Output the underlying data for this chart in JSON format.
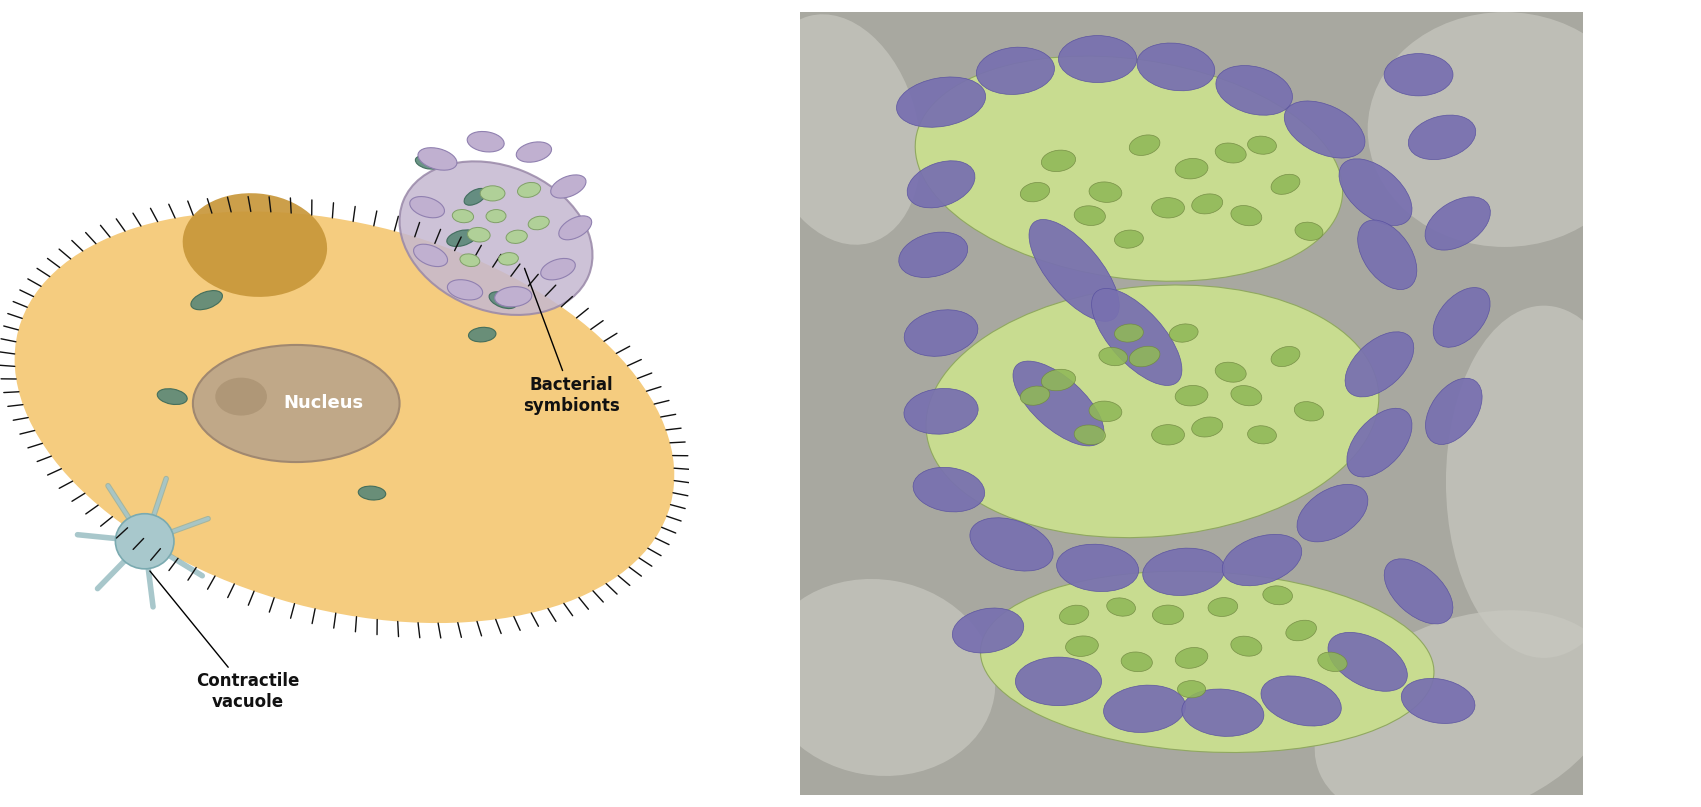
{
  "fig_width": 17.01,
  "fig_height": 8.07,
  "dpi": 100,
  "left_panel": {
    "cell_body_color": "#F5CC7F",
    "food_vacuole_color": "#C8973A",
    "macronucleus_color": "#C0A888",
    "macronucleus_edge_color": "#A08870",
    "nucleus_label": "Nucleus",
    "nucleus_label_color": "#ffffff",
    "nucleus_fontsize": 13,
    "contractile_vacuole_color": "#A8C8CC",
    "contractile_vacuole_edge_color": "#7AAAB0",
    "bacterial_symbiont_vacuole_bg": "#C5B8D0",
    "bacterial_symbiont_vacuole_edge": "#9988A8",
    "bacteria_free_color": "#5A8878",
    "bacteria_free_edge": "#3A6858",
    "bacteria_inside_purple_color": "#C0B0D0",
    "bacteria_inside_purple_edge": "#9080B0",
    "bacteria_inside_green_color": "#B0D098",
    "bacteria_inside_green_edge": "#80A068",
    "cilia_color": "#111111",
    "bacterial_symbionts_label": "Bacterial\nsymbionts",
    "bacterial_symbionts_fontsize": 12,
    "contractile_vacuole_label": "Contractile\nvacuole",
    "contractile_vacuole_fontsize": 12,
    "label_color": "#111111"
  },
  "right_panel": {
    "bg_color": "#A8A8A0",
    "compartment_color": "#C8DC90",
    "compartment_edge": "#90A860",
    "purple_color": "#7870B0",
    "purple_edge": "#5850A0",
    "small_green_color": "#90B858",
    "small_green_edge": "#708840"
  }
}
